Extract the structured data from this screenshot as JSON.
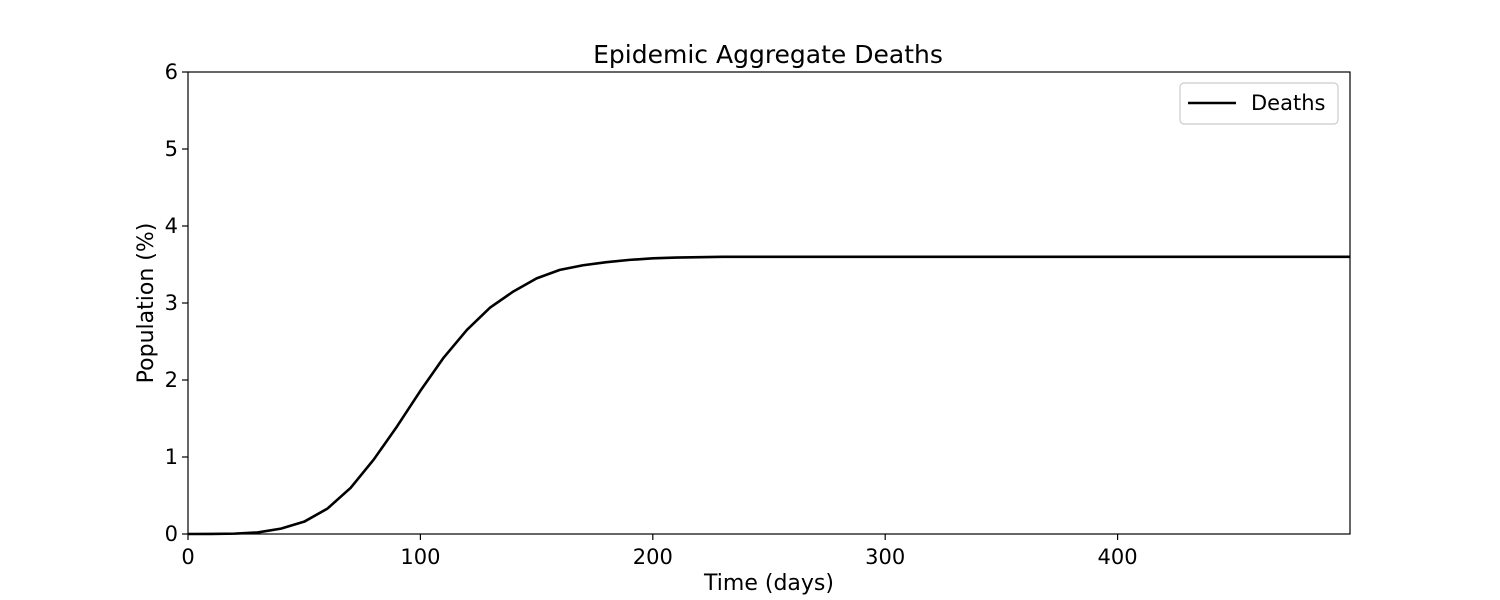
{
  "chart_data": {
    "type": "line",
    "title": "Epidemic Aggregate Deaths",
    "xlabel": "Time (days)",
    "ylabel": "Population (%)",
    "xlim": [
      0,
      500
    ],
    "ylim": [
      0,
      6
    ],
    "xticks": [
      0,
      100,
      200,
      300,
      400
    ],
    "yticks": [
      0,
      1,
      2,
      3,
      4,
      5,
      6
    ],
    "grid": false,
    "legend_position": "top-right",
    "series": [
      {
        "name": "Deaths",
        "color": "#000000",
        "x": [
          0,
          10,
          20,
          30,
          40,
          50,
          60,
          70,
          80,
          90,
          100,
          110,
          120,
          130,
          140,
          150,
          160,
          170,
          180,
          190,
          200,
          210,
          220,
          230,
          240,
          250,
          275,
          300,
          350,
          400,
          450,
          500
        ],
        "y": [
          0,
          0.001,
          0.005,
          0.02,
          0.07,
          0.16,
          0.33,
          0.6,
          0.97,
          1.4,
          1.86,
          2.29,
          2.65,
          2.94,
          3.15,
          3.32,
          3.43,
          3.49,
          3.53,
          3.56,
          3.58,
          3.59,
          3.595,
          3.6,
          3.6,
          3.6,
          3.6,
          3.6,
          3.6,
          3.6,
          3.6,
          3.6
        ]
      }
    ]
  }
}
